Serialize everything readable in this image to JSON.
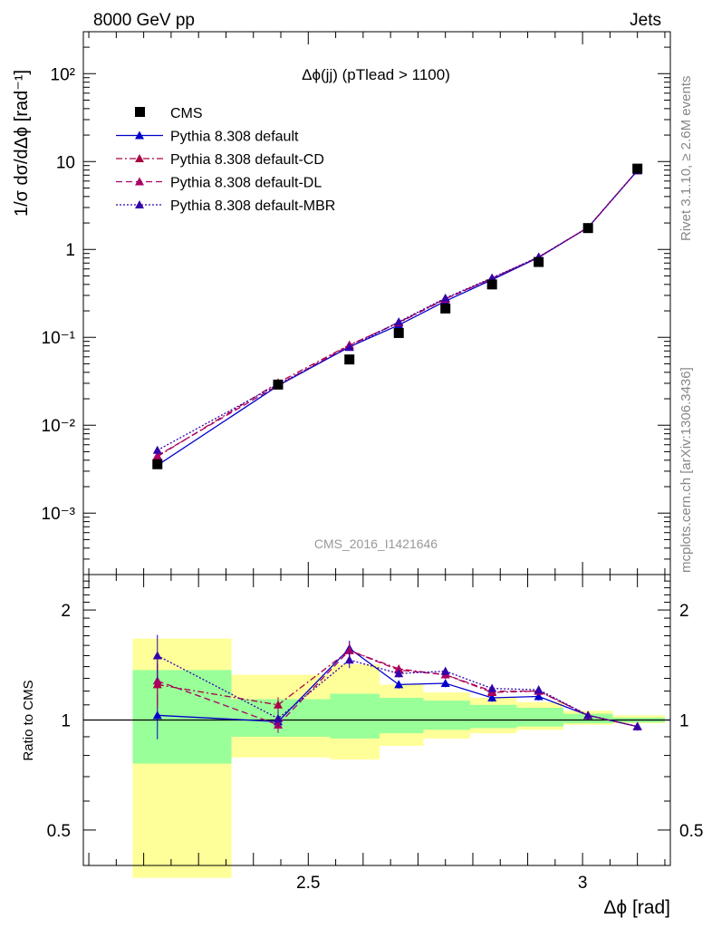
{
  "header": {
    "left": "8000 GeV pp",
    "right": "Jets",
    "side_top": "Rivet 3.1.10, ≥ 2.6M events",
    "side_bottom": "mcplots.cern.ch [arXiv:1306.3436]",
    "watermark": "CMS_2016_I1421646"
  },
  "chart_data": [
    {
      "type": "line",
      "panel": "main",
      "title": "Δϕ(jj) (pTlead >  1100)",
      "ylabel": "1/σ dσ/dΔϕ [rad⁻¹]",
      "yscale": "log",
      "ylim": [
        0.0002,
        300
      ],
      "xlim": [
        2.09,
        3.16
      ],
      "yticks": [
        "10⁻³",
        "10⁻²",
        "10⁻¹",
        "1",
        "10",
        "10²"
      ],
      "legend_position": "top-left",
      "series": [
        {
          "name": "CMS",
          "style": "data",
          "color": "#000000",
          "x": [
            2.225,
            2.445,
            2.575,
            2.665,
            2.75,
            2.835,
            2.92,
            3.01,
            3.1
          ],
          "y": [
            0.0036,
            0.029,
            0.056,
            0.112,
            0.213,
            0.4,
            0.72,
            1.75,
            8.3
          ]
        },
        {
          "name": "Pythia 8.308 default",
          "style": "solid",
          "color": "#0000cc",
          "x": [
            2.225,
            2.445,
            2.575,
            2.665,
            2.75,
            2.835,
            2.92,
            3.01,
            3.1
          ],
          "y": [
            0.0035,
            0.0282,
            0.078,
            0.138,
            0.258,
            0.453,
            0.81,
            1.78,
            7.9
          ]
        },
        {
          "name": "Pythia 8.308 default-CD",
          "style": "dashdot",
          "color": "#aa0044",
          "x": [
            2.225,
            2.445,
            2.575,
            2.665,
            2.75,
            2.835,
            2.92,
            3.01,
            3.1
          ],
          "y": [
            0.0044,
            0.0305,
            0.082,
            0.146,
            0.272,
            0.468,
            0.82,
            1.78,
            7.9
          ]
        },
        {
          "name": "Pythia 8.308 default-DL",
          "style": "dashed",
          "color": "#aa0066",
          "x": [
            2.225,
            2.445,
            2.575,
            2.665,
            2.75,
            2.835,
            2.92,
            3.01,
            3.1
          ],
          "y": [
            0.0045,
            0.0285,
            0.081,
            0.148,
            0.275,
            0.47,
            0.82,
            1.78,
            7.9
          ]
        },
        {
          "name": "Pythia 8.308 default-MBR",
          "style": "dotted",
          "color": "#3300aa",
          "x": [
            2.225,
            2.445,
            2.575,
            2.665,
            2.75,
            2.835,
            2.92,
            3.01,
            3.1
          ],
          "y": [
            0.0052,
            0.0292,
            0.077,
            0.15,
            0.28,
            0.475,
            0.82,
            1.78,
            7.9
          ]
        }
      ]
    },
    {
      "type": "line",
      "panel": "ratio",
      "xlabel": "Δϕ [rad]",
      "ylabel": "Ratio to CMS",
      "yscale": "log",
      "ylim": [
        0.4,
        2.5
      ],
      "xlim": [
        2.09,
        3.16
      ],
      "xticks": [
        2.5,
        3
      ],
      "yticks": [
        0.5,
        1,
        2
      ],
      "reference_line": 1,
      "bands": {
        "bins": [
          2.18,
          2.36,
          2.54,
          2.63,
          2.71,
          2.795,
          2.88,
          2.965,
          3.055,
          3.15
        ],
        "inner_low": [
          0.76,
          0.9,
          0.89,
          0.92,
          0.94,
          0.95,
          0.96,
          0.98,
          0.985
        ],
        "inner_high": [
          1.37,
          1.14,
          1.18,
          1.15,
          1.13,
          1.1,
          1.08,
          1.04,
          1.015
        ],
        "outer_low": [
          0.37,
          0.79,
          0.78,
          0.85,
          0.89,
          0.92,
          0.94,
          0.97,
          0.98
        ],
        "outer_high": [
          1.67,
          1.33,
          1.42,
          1.25,
          1.19,
          1.15,
          1.12,
          1.06,
          1.03
        ],
        "inner_color": "#99ff99",
        "outer_color": "#ffff99"
      },
      "series": [
        {
          "name": "Pythia 8.308 default",
          "color": "#0000cc",
          "style": "solid",
          "y": [
            1.03,
            0.99,
            1.57,
            1.25,
            1.26,
            1.15,
            1.16,
            1.03,
            0.96
          ]
        },
        {
          "name": "Pythia 8.308 default-CD",
          "color": "#aa0044",
          "style": "dashdot",
          "y": [
            1.25,
            1.1,
            1.55,
            1.38,
            1.33,
            1.19,
            1.2,
            1.03,
            0.96
          ]
        },
        {
          "name": "Pythia 8.308 default-DL",
          "color": "#aa0066",
          "style": "dashed",
          "y": [
            1.28,
            0.97,
            1.55,
            1.37,
            1.33,
            1.2,
            1.2,
            1.03,
            0.96
          ]
        },
        {
          "name": "Pythia 8.308 default-MBR",
          "color": "#3300aa",
          "style": "dotted",
          "y": [
            1.5,
            1.01,
            1.46,
            1.34,
            1.36,
            1.22,
            1.21,
            1.03,
            0.96
          ]
        }
      ]
    }
  ]
}
